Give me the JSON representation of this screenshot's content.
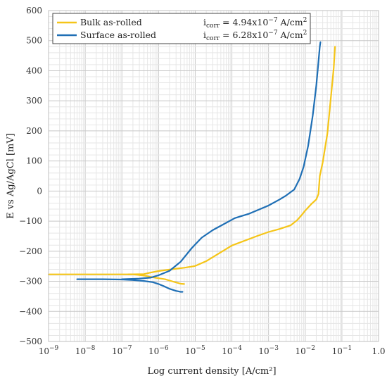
{
  "chart_data": {
    "type": "line",
    "xlabel": "Log current density [A/cm²]",
    "ylabel": "E vs Ag/AgCl [mV]",
    "xscale": "log",
    "xlim": [
      1e-09,
      1.0
    ],
    "ylim": [
      -500,
      600
    ],
    "grid": true,
    "legend_position": "top",
    "xtick_labels": [
      {
        "value": 1e-09,
        "base": "10",
        "exp": "−9"
      },
      {
        "value": 1e-08,
        "base": "10",
        "exp": "−8"
      },
      {
        "value": 1e-07,
        "base": "10",
        "exp": "−7"
      },
      {
        "value": 1e-06,
        "base": "10",
        "exp": "−6"
      },
      {
        "value": 1e-05,
        "base": "10",
        "exp": "−5"
      },
      {
        "value": 0.0001,
        "base": "10",
        "exp": "−4"
      },
      {
        "value": 0.001,
        "base": "10",
        "exp": "−3"
      },
      {
        "value": 0.01,
        "base": "10",
        "exp": "−2"
      },
      {
        "value": 0.1,
        "base": "10",
        "exp": "−1"
      },
      {
        "value": 1.0,
        "base": "1.0",
        "exp": ""
      }
    ],
    "yticks": [
      600,
      500,
      400,
      300,
      200,
      100,
      0,
      -100,
      -200,
      -300,
      -400,
      -500
    ],
    "ytick_labels": [
      "600",
      "500",
      "400",
      "300",
      "200",
      "100",
      "0",
      "−100",
      "−200",
      "−300",
      "−400",
      "−500"
    ],
    "series": [
      {
        "name": "Bulk as-rolled",
        "color": "#f5c518",
        "annotation": {
          "prefix": "i",
          "sub": "corr",
          "value": " = 4.94x10",
          "exp": "−7",
          "unit": " A/cm",
          "unit_exp": "2"
        },
        "branches": [
          {
            "x": [
              1e-09,
              1e-08,
              5e-08,
              2e-07,
              3e-07,
              4e-07,
              5e-07,
              8e-07,
              1.5e-06,
              2.5e-06,
              4e-06,
              5e-06
            ],
            "y": [
              -277,
              -277,
              -277,
              -277,
              -279,
              -281,
              -283,
              -288,
              -293,
              -301,
              -308,
              -309
            ]
          },
          {
            "x": [
              1.5e-07,
              4e-07,
              6e-07,
              1e-06,
              2e-06,
              5e-06,
              1e-05,
              2e-05,
              0.0001,
              0.0005,
              0.001,
              0.002,
              0.004,
              0.006,
              0.008,
              0.01,
              0.015,
              0.02,
              0.023,
              0.025,
              0.03,
              0.04,
              0.05,
              0.06,
              0.065
            ],
            "y": [
              -277,
              -276,
              -271,
              -266,
              -261,
              -255,
              -249,
              -233,
              -181,
              -149,
              -136,
              -126,
              -114,
              -97,
              -80,
              -65,
              -42,
              -28,
              -10,
              50,
              95,
              190,
              310,
              410,
              480
            ]
          }
        ]
      },
      {
        "name": "Surface as-rolled",
        "color": "#1f6fb5",
        "annotation": {
          "prefix": "i",
          "sub": "corr",
          "value": " = 6.28x10",
          "exp": "−7",
          "unit": " A/cm",
          "unit_exp": "2"
        },
        "branches": [
          {
            "x": [
              6e-09,
              3e-08,
              1e-07,
              2e-07,
              4e-07,
              7e-07,
              1e-06,
              1.5e-06,
              2e-06,
              3e-06,
              4e-06,
              4.5e-06
            ],
            "y": [
              -293,
              -293,
              -294,
              -296,
              -299,
              -303,
              -309,
              -318,
              -325,
              -332,
              -335,
              -335
            ]
          },
          {
            "x": [
              1e-07,
              3e-07,
              6e-07,
              1e-06,
              2e-06,
              4e-06,
              8e-06,
              1.5e-05,
              3e-05,
              6e-05,
              0.00012,
              0.0003,
              0.001,
              0.002,
              0.003,
              0.005,
              0.007,
              0.009,
              0.012,
              0.016,
              0.02,
              0.023,
              0.025,
              0.026
            ],
            "y": [
              -293,
              -291,
              -288,
              -280,
              -265,
              -235,
              -190,
              -155,
              -130,
              -110,
              -90,
              -75,
              -48,
              -28,
              -15,
              5,
              40,
              80,
              150,
              250,
              350,
              430,
              480,
              495
            ]
          }
        ]
      }
    ]
  }
}
